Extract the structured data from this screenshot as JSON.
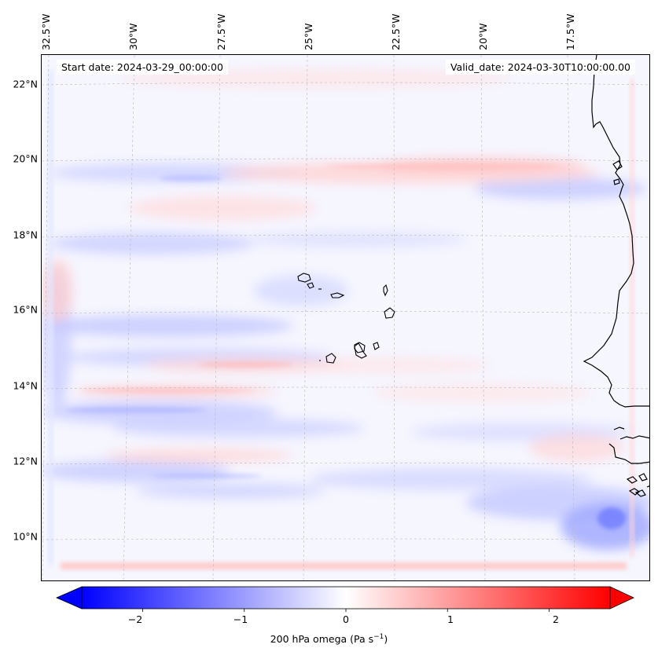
{
  "map": {
    "lon_labels": [
      "32.5°W",
      "30°W",
      "27.5°W",
      "25°W",
      "22.5°W",
      "20°W",
      "17.5°W"
    ],
    "lat_labels": [
      "22°N",
      "20°N",
      "18°N",
      "16°N",
      "14°N",
      "12°N",
      "10°N"
    ],
    "start_date": "Start date: 2024-03-29_00:00:00",
    "valid_date": "Valid_date: 2024-03-30T10:00:00.00",
    "region": "Cabo Verde islands and West African coast"
  },
  "colorbar": {
    "ticks": [
      "−2",
      "−1",
      "0",
      "1",
      "2"
    ],
    "tick_values": [
      -2,
      -1,
      0,
      1,
      2
    ],
    "range": [
      -2.6,
      2.6
    ],
    "label": "200 hPa omega (Pa s",
    "label_sup": "−1",
    "label_end": ")",
    "negative_color": "#0000ff",
    "positive_color": "#ff0000"
  }
}
